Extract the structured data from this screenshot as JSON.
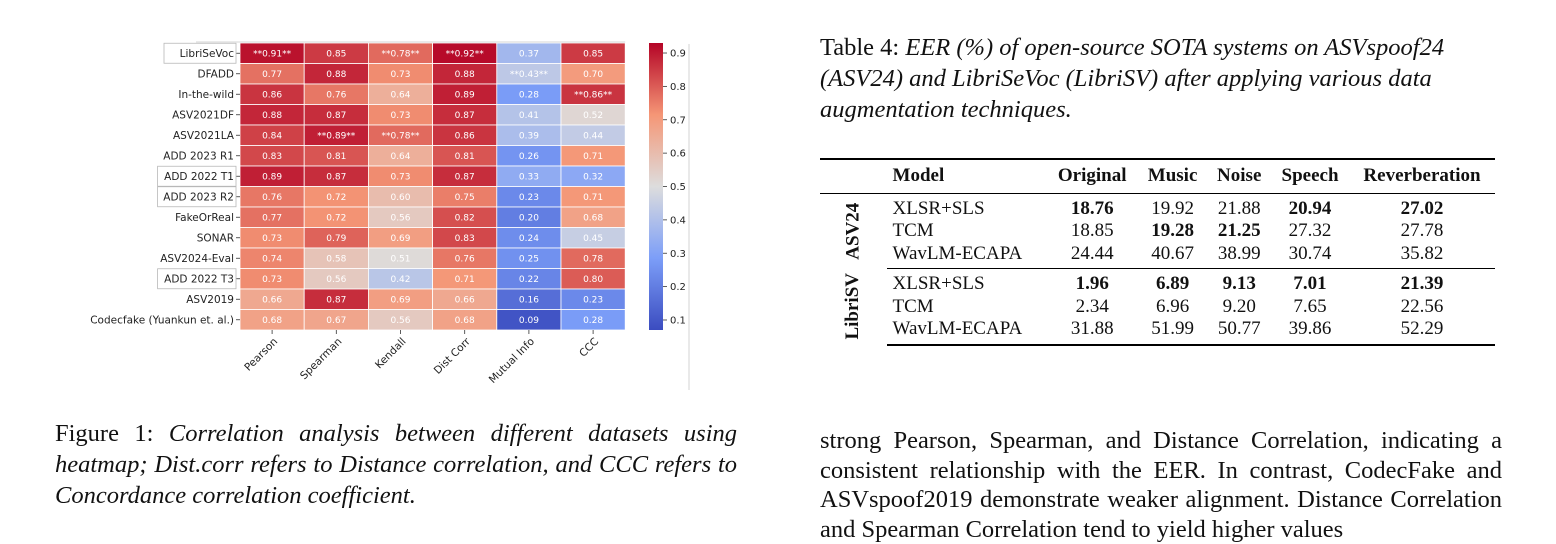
{
  "heatmap": {
    "rows": [
      "LibriSeVoc",
      "DFADD",
      "In-the-wild",
      "ASV2021DF",
      "ASV2021LA",
      "ADD 2023 R1",
      "ADD 2022 T1",
      "ADD 2023 R2",
      "FakeOrReal",
      "SONAR",
      "ASV2024-Eval",
      "ADD 2022 T3",
      "ASV2019",
      "Codecfake (Yuankun et. al.)"
    ],
    "cols": [
      "Pearson",
      "Spearman",
      "Kendall",
      "Dist Corr",
      "Mutual Info",
      "CCC"
    ],
    "cells": [
      [
        "**0.91**",
        "0.85",
        "**0.78**",
        "**0.92**",
        "0.37",
        "0.85"
      ],
      [
        "0.77",
        "0.88",
        "0.73",
        "0.88",
        "**0.43**",
        "0.70"
      ],
      [
        "0.86",
        "0.76",
        "0.64",
        "0.89",
        "0.28",
        "**0.86**"
      ],
      [
        "0.88",
        "0.87",
        "0.73",
        "0.87",
        "0.41",
        "0.52"
      ],
      [
        "0.84",
        "**0.89**",
        "**0.78**",
        "0.86",
        "0.39",
        "0.44"
      ],
      [
        "0.83",
        "0.81",
        "0.64",
        "0.81",
        "0.26",
        "0.71"
      ],
      [
        "0.89",
        "0.87",
        "0.73",
        "0.87",
        "0.33",
        "0.32"
      ],
      [
        "0.76",
        "0.72",
        "0.60",
        "0.75",
        "0.23",
        "0.71"
      ],
      [
        "0.77",
        "0.72",
        "0.56",
        "0.82",
        "0.20",
        "0.68"
      ],
      [
        "0.73",
        "0.79",
        "0.69",
        "0.83",
        "0.24",
        "0.45"
      ],
      [
        "0.74",
        "0.58",
        "0.51",
        "0.76",
        "0.25",
        "0.78"
      ],
      [
        "0.73",
        "0.56",
        "0.42",
        "0.71",
        "0.22",
        "0.80"
      ],
      [
        "0.66",
        "0.87",
        "0.69",
        "0.66",
        "0.16",
        "0.23"
      ],
      [
        "0.68",
        "0.67",
        "0.56",
        "0.68",
        "0.09",
        "0.28"
      ]
    ],
    "colorbar_ticks": [
      "0.9",
      "0.8",
      "0.7",
      "0.6",
      "0.5",
      "0.4",
      "0.3",
      "0.2",
      "0.1"
    ],
    "colorbar_range": [
      0.07,
      0.93
    ]
  },
  "chart_data": {
    "type": "heatmap",
    "x_categories": [
      "Pearson",
      "Spearman",
      "Kendall",
      "Dist Corr",
      "Mutual Info",
      "CCC"
    ],
    "y_categories": [
      "LibriSeVoc",
      "DFADD",
      "In-the-wild",
      "ASV2021DF",
      "ASV2021LA",
      "ADD 2023 R1",
      "ADD 2022 T1",
      "ADD 2023 R2",
      "FakeOrReal",
      "SONAR",
      "ASV2024-Eval",
      "ADD 2022 T3",
      "ASV2019",
      "Codecfake (Yuankun et. al.)"
    ],
    "values": [
      [
        0.91,
        0.85,
        0.78,
        0.92,
        0.37,
        0.85
      ],
      [
        0.77,
        0.88,
        0.73,
        0.88,
        0.43,
        0.7
      ],
      [
        0.86,
        0.76,
        0.64,
        0.89,
        0.28,
        0.86
      ],
      [
        0.88,
        0.87,
        0.73,
        0.87,
        0.41,
        0.52
      ],
      [
        0.84,
        0.89,
        0.78,
        0.86,
        0.39,
        0.44
      ],
      [
        0.83,
        0.81,
        0.64,
        0.81,
        0.26,
        0.71
      ],
      [
        0.89,
        0.87,
        0.73,
        0.87,
        0.33,
        0.32
      ],
      [
        0.76,
        0.72,
        0.6,
        0.75,
        0.23,
        0.71
      ],
      [
        0.77,
        0.72,
        0.56,
        0.82,
        0.2,
        0.68
      ],
      [
        0.73,
        0.79,
        0.69,
        0.83,
        0.24,
        0.45
      ],
      [
        0.74,
        0.58,
        0.51,
        0.76,
        0.25,
        0.78
      ],
      [
        0.73,
        0.56,
        0.42,
        0.71,
        0.22,
        0.8
      ],
      [
        0.66,
        0.87,
        0.69,
        0.66,
        0.16,
        0.23
      ],
      [
        0.68,
        0.67,
        0.56,
        0.68,
        0.09,
        0.28
      ]
    ],
    "colormap": "coolwarm",
    "colorbar_ticks": [
      0.9,
      0.8,
      0.7,
      0.6,
      0.5,
      0.4,
      0.3,
      0.2,
      0.1
    ]
  },
  "figure_caption": {
    "label": "Figure 1:",
    "text": "Correlation analysis between different datasets using heatmap; Dist.corr refers to Distance correlation, and CCC refers to Concordance correlation coefficient."
  },
  "table_caption": {
    "label": "Table 4:",
    "text": "EER (%) of open-source SOTA systems on ASVspoof24 (ASV24) and LibriSeVoc (LibriSV) after applying various data augmentation techniques."
  },
  "table": {
    "headers": [
      "Model",
      "Original",
      "Music",
      "Noise",
      "Speech",
      "Reverberation"
    ],
    "groups": [
      {
        "label": "ASV24",
        "rows": [
          [
            "XLSR+SLS",
            "18.76",
            "19.92",
            "21.88",
            "20.94",
            "27.02"
          ],
          [
            "TCM",
            "18.85",
            "19.28",
            "21.25",
            "27.32",
            "27.78"
          ],
          [
            "WavLM-ECAPA",
            "24.44",
            "40.67",
            "38.99",
            "30.74",
            "35.82"
          ]
        ]
      },
      {
        "label": "LibriSV",
        "rows": [
          [
            "XLSR+SLS",
            "1.96",
            "6.89",
            "9.13",
            "7.01",
            "21.39"
          ],
          [
            "TCM",
            "2.34",
            "6.96",
            "9.20",
            "7.65",
            "22.56"
          ],
          [
            "WavLM-ECAPA",
            "31.88",
            "51.99",
            "50.77",
            "39.86",
            "52.29"
          ]
        ]
      }
    ]
  },
  "body_text": "strong Pearson, Spearman, and Distance Correlation, indicating a consistent relationship with the EER. In contrast, CodecFake and ASVspoof2019 demonstrate weaker alignment. Distance Correlation and Spearman Correlation tend to yield higher values"
}
